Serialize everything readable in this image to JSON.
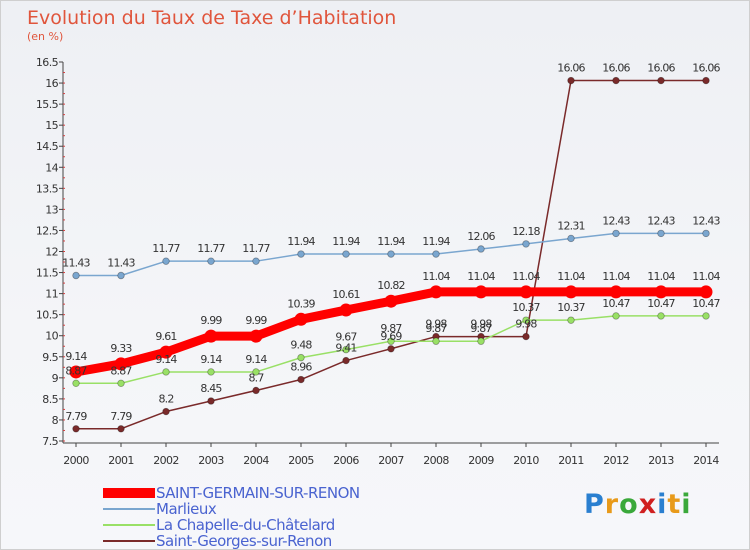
{
  "header": {
    "title": "Evolution du Taux de Taxe d’Habitation",
    "unit": "(en %)"
  },
  "logo": {
    "text": "Proxiti"
  },
  "chart_data": {
    "type": "line",
    "title": "Evolution du Taux de Taxe d’Habitation",
    "ylabel": "(en %)",
    "ylim": [
      7.5,
      16.5
    ],
    "yticks": [
      "7.5",
      "8",
      "8.5",
      "9",
      "9.5",
      "10",
      "10.5",
      "11",
      "11.5",
      "12",
      "12.5",
      "13",
      "13.5",
      "14",
      "14.5",
      "15",
      "15.5",
      "16",
      "16.5"
    ],
    "x": [
      "2000",
      "2001",
      "2002",
      "2003",
      "2004",
      "2005",
      "2006",
      "2007",
      "2008",
      "2009",
      "2010",
      "2011",
      "2012",
      "2013",
      "2014"
    ],
    "grid": false,
    "legend_position": "bottom-left",
    "series": [
      {
        "name": "SAINT-GERMAIN-SUR-RENON",
        "color": "#ff0000",
        "values": [
          9.14,
          9.33,
          9.61,
          9.99,
          9.99,
          10.39,
          10.61,
          10.82,
          11.04,
          11.04,
          11.04,
          11.04,
          11.04,
          11.04,
          11.04
        ],
        "labels": [
          "9.14",
          "9.33",
          "9.61",
          "9.99",
          "9.99",
          "10.39",
          "10.61",
          "10.82",
          "11.04",
          "11.04",
          "11.04",
          "11.04",
          "11.04",
          "11.04",
          "11.04"
        ]
      },
      {
        "name": "Marlieux",
        "color": "#7aa6cf",
        "values": [
          11.43,
          11.43,
          11.77,
          11.77,
          11.77,
          11.94,
          11.94,
          11.94,
          11.94,
          12.06,
          12.18,
          12.31,
          12.43,
          12.43,
          12.43
        ],
        "labels": [
          "11.43",
          "11.43",
          "11.77",
          "11.77",
          "11.77",
          "11.94",
          "11.94",
          "11.94",
          "11.94",
          "12.06",
          "12.18",
          "12.31",
          "12.43",
          "12.43",
          "12.43"
        ]
      },
      {
        "name": "La Chapelle-du-Châtelard",
        "color": "#99e066",
        "values": [
          8.87,
          8.87,
          9.14,
          9.14,
          9.14,
          9.48,
          9.67,
          9.87,
          9.87,
          9.87,
          10.37,
          10.37,
          10.47,
          10.47,
          10.47
        ],
        "labels": [
          "8.87",
          "8.87",
          "9.14",
          "9.14",
          "9.14",
          "9.48",
          "9.67",
          "9.87",
          "9.87",
          "9.87",
          "10.37",
          "10.37",
          "10.47",
          "10.47",
          "10.47"
        ]
      },
      {
        "name": "Saint-Georges-sur-Renon",
        "color": "#7a2a2a",
        "values": [
          7.79,
          7.79,
          8.2,
          8.45,
          8.7,
          8.96,
          9.41,
          9.69,
          9.98,
          9.98,
          9.98,
          16.06,
          16.06,
          16.06,
          16.06
        ],
        "labels": [
          "7.79",
          "7.79",
          "8.2",
          "8.45",
          "8.7",
          "8.96",
          "9.41",
          "9.69",
          "9.98",
          "9.98",
          "9.98",
          "16.06",
          "16.06",
          "16.06",
          "16.06"
        ]
      }
    ]
  }
}
